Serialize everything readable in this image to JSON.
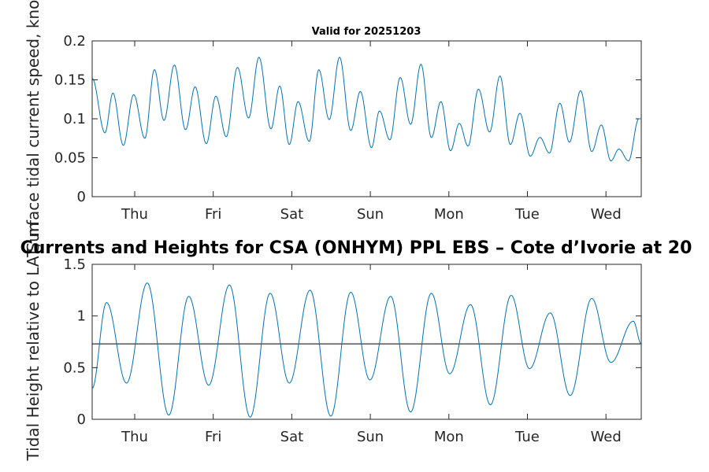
{
  "chart_data": [
    {
      "type": "line",
      "title": "Valid for 20251203",
      "ylabel": "Surface tidal current speed, knots",
      "xlabel": "",
      "x_tick_labels": [
        "Thu",
        "Fri",
        "Sat",
        "Sun",
        "Mon",
        "Tue",
        "Wed"
      ],
      "y_ticks": [
        0,
        0.05,
        0.1,
        0.15,
        0.2
      ],
      "y_tick_labels": [
        "0",
        "0.05",
        "0.1",
        "0.15",
        "0.2"
      ],
      "ylim": [
        0,
        0.2
      ],
      "series": [
        {
          "name": "current speed",
          "color": "#0072BD",
          "extrema": [
            [
              0.0,
              0.152
            ],
            [
              0.16,
              0.082
            ],
            [
              0.26,
              0.133
            ],
            [
              0.39,
              0.066
            ],
            [
              0.52,
              0.131
            ],
            [
              0.66,
              0.075
            ],
            [
              0.78,
              0.163
            ],
            [
              0.9,
              0.098
            ],
            [
              1.03,
              0.169
            ],
            [
              1.17,
              0.086
            ],
            [
              1.29,
              0.141
            ],
            [
              1.43,
              0.068
            ],
            [
              1.55,
              0.129
            ],
            [
              1.68,
              0.077
            ],
            [
              1.82,
              0.166
            ],
            [
              1.96,
              0.101
            ],
            [
              2.09,
              0.179
            ],
            [
              2.24,
              0.087
            ],
            [
              2.35,
              0.142
            ],
            [
              2.47,
              0.067
            ],
            [
              2.58,
              0.122
            ],
            [
              2.72,
              0.071
            ],
            [
              2.84,
              0.163
            ],
            [
              2.97,
              0.099
            ],
            [
              3.1,
              0.179
            ],
            [
              3.24,
              0.085
            ],
            [
              3.36,
              0.135
            ],
            [
              3.5,
              0.063
            ],
            [
              3.6,
              0.11
            ],
            [
              3.73,
              0.073
            ],
            [
              3.86,
              0.153
            ],
            [
              3.99,
              0.093
            ],
            [
              4.12,
              0.17
            ],
            [
              4.25,
              0.076
            ],
            [
              4.37,
              0.122
            ],
            [
              4.49,
              0.059
            ],
            [
              4.6,
              0.094
            ],
            [
              4.71,
              0.065
            ],
            [
              4.84,
              0.138
            ],
            [
              4.98,
              0.083
            ],
            [
              5.11,
              0.155
            ],
            [
              5.24,
              0.067
            ],
            [
              5.36,
              0.107
            ],
            [
              5.49,
              0.052
            ],
            [
              5.61,
              0.076
            ],
            [
              5.73,
              0.056
            ],
            [
              5.86,
              0.12
            ],
            [
              5.98,
              0.07
            ],
            [
              6.12,
              0.136
            ],
            [
              6.26,
              0.058
            ],
            [
              6.38,
              0.092
            ],
            [
              6.5,
              0.046
            ],
            [
              6.6,
              0.061
            ],
            [
              6.72,
              0.046
            ],
            [
              6.85,
              0.1
            ],
            [
              6.88,
              0.1
            ]
          ]
        }
      ]
    },
    {
      "type": "line",
      "title": "Currents and Heights for CSA (ONHYM) PPL EBS  – Cote d’Ivorie at 20",
      "ylabel": "Tidal Height relative to LAT, m",
      "xlabel": "",
      "x_tick_labels": [
        "Thu",
        "Fri",
        "Sat",
        "Sun",
        "Mon",
        "Tue",
        "Wed"
      ],
      "y_ticks": [
        0,
        0.5,
        1,
        1.5
      ],
      "y_tick_labels": [
        "0",
        "0.5",
        "1",
        "1.5"
      ],
      "ylim": [
        0,
        1.5
      ],
      "reference_line": 0.73,
      "series": [
        {
          "name": "tidal height",
          "color": "#0072BD",
          "extrema": [
            [
              0.0,
              0.3
            ],
            [
              0.18,
              1.13
            ],
            [
              0.43,
              0.35
            ],
            [
              0.69,
              1.32
            ],
            [
              0.96,
              0.04
            ],
            [
              1.21,
              1.19
            ],
            [
              1.46,
              0.33
            ],
            [
              1.72,
              1.3
            ],
            [
              1.98,
              0.02
            ],
            [
              2.23,
              1.22
            ],
            [
              2.47,
              0.35
            ],
            [
              2.73,
              1.25
            ],
            [
              2.99,
              0.03
            ],
            [
              3.24,
              1.23
            ],
            [
              3.48,
              0.38
            ],
            [
              3.74,
              1.19
            ],
            [
              3.99,
              0.07
            ],
            [
              4.25,
              1.22
            ],
            [
              4.48,
              0.44
            ],
            [
              4.74,
              1.11
            ],
            [
              4.99,
              0.14
            ],
            [
              5.25,
              1.2
            ],
            [
              5.48,
              0.49
            ],
            [
              5.74,
              1.03
            ],
            [
              5.99,
              0.23
            ],
            [
              6.26,
              1.17
            ],
            [
              6.5,
              0.55
            ],
            [
              6.78,
              0.95
            ],
            [
              6.88,
              0.73
            ]
          ]
        }
      ]
    }
  ]
}
